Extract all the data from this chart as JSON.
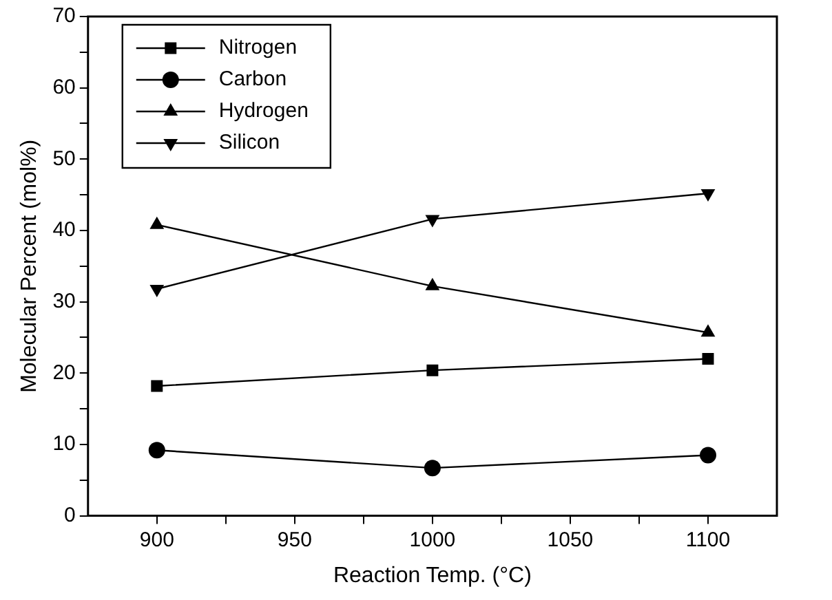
{
  "chart_data": {
    "type": "line",
    "xlabel": "Reaction Temp. (°C)",
    "ylabel": "Molecular Percent (mol%)",
    "x": [
      900,
      1000,
      1100
    ],
    "series": [
      {
        "name": "Nitrogen",
        "color": "#000000",
        "marker": "square",
        "values": [
          18.2,
          20.4,
          22.0
        ]
      },
      {
        "name": "Carbon",
        "color": "#000000",
        "marker": "circle",
        "values": [
          9.2,
          6.7,
          8.5
        ]
      },
      {
        "name": "Hydrogen",
        "color": "#000000",
        "marker": "triangle",
        "values": [
          40.8,
          32.2,
          25.7
        ]
      },
      {
        "name": "Silicon",
        "color": "#000000",
        "marker": "triangle-down",
        "values": [
          31.8,
          41.6,
          45.2
        ]
      }
    ],
    "xlim": [
      875,
      1125
    ],
    "xticks": [
      900,
      {
        "value": 925,
        "label": null
      },
      950,
      {
        "value": 975,
        "label": null
      },
      1000,
      {
        "value": 1025,
        "label": null
      },
      1050,
      {
        "value": 1075,
        "label": null
      },
      1100
    ],
    "ylim": [
      0,
      70
    ],
    "yticks": [
      0,
      {
        "value": 5,
        "label": null
      },
      10,
      {
        "value": 15,
        "label": null
      },
      20,
      {
        "value": 25,
        "label": null
      },
      30,
      {
        "value": 35,
        "label": null
      },
      40,
      {
        "value": 45,
        "label": null
      },
      50,
      {
        "value": 55,
        "label": null
      },
      60,
      {
        "value": 65,
        "label": null
      },
      70
    ],
    "grid": false,
    "legend": "top left",
    "line_style": "solid"
  }
}
